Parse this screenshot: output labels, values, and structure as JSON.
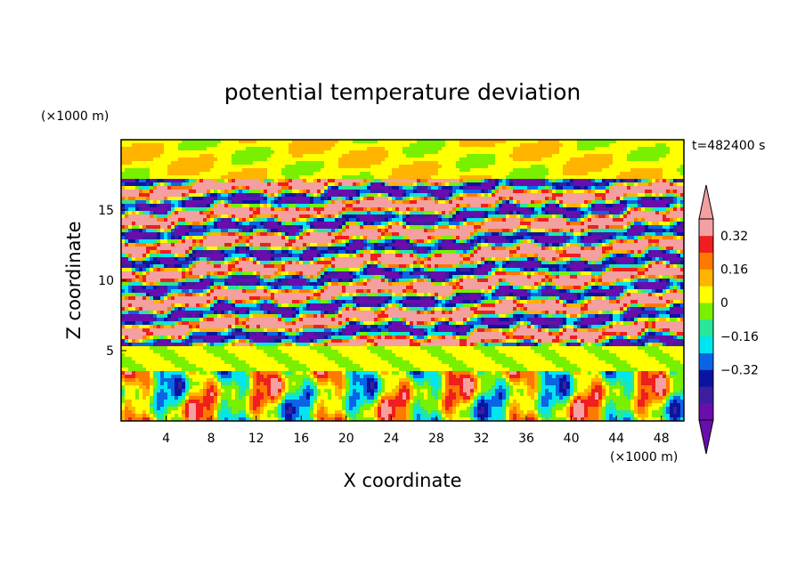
{
  "chart_data": {
    "type": "heatmap",
    "title": "potential temperature deviation",
    "xlabel": "X coordinate",
    "ylabel": "Z coordinate",
    "x_unit": "(×1000 m)",
    "y_unit": "(×1000 m)",
    "time_label": "t=482400 s",
    "xlim": [
      0,
      50
    ],
    "ylim": [
      0,
      20
    ],
    "x_ticks": [
      "4",
      "8",
      "12",
      "16",
      "20",
      "24",
      "28",
      "32",
      "36",
      "40",
      "44",
      "48"
    ],
    "y_ticks": [
      "5",
      "10",
      "15"
    ],
    "colorbar": {
      "levels": [
        -0.48,
        -0.4,
        -0.32,
        -0.24,
        -0.16,
        -0.08,
        0,
        0.08,
        0.16,
        0.24,
        0.32,
        0.4
      ],
      "tick_labels": [
        "0.32",
        "0.16",
        "0",
        "−0.16",
        "−0.32"
      ],
      "tick_values": [
        0.32,
        0.16,
        0,
        -0.16,
        -0.32
      ],
      "colors": [
        "#6a0dad",
        "#3c1e9e",
        "#0a14a0",
        "#0a64e6",
        "#00e6f0",
        "#28e69a",
        "#78f000",
        "#ffff00",
        "#ffb400",
        "#ff7800",
        "#f01e1e",
        "#f4a0a0"
      ],
      "extend": "both"
    }
  }
}
